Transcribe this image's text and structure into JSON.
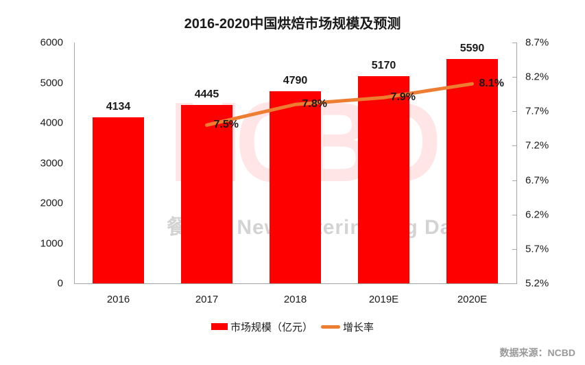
{
  "title": "2016-2020中国烘焙市场规模及预测",
  "chart_data": {
    "type": "bar+line",
    "title": "2016-2020中国烘焙市场规模及预测",
    "categories": [
      "2016",
      "2017",
      "2018",
      "2019E",
      "2020E"
    ],
    "series": [
      {
        "name": "市场规模（亿元）",
        "type": "bar",
        "color": "#FF0000",
        "values": [
          4134,
          4445,
          4790,
          5170,
          5590
        ]
      },
      {
        "name": "增长率",
        "type": "line",
        "color": "#ED7D31",
        "unit": "%",
        "values": [
          null,
          7.5,
          7.8,
          7.9,
          8.1
        ],
        "labels": [
          "7.5%",
          "7.8%",
          "7.9%",
          "8.1%"
        ]
      }
    ],
    "y_left": {
      "min": 0,
      "max": 6000,
      "step": 1000,
      "ticks": [
        "6000",
        "5000",
        "4000",
        "3000",
        "2000",
        "1000",
        "0"
      ]
    },
    "y_right": {
      "min": 5.2,
      "max": 8.7,
      "step": 0.5,
      "ticks": [
        "8.7%",
        "8.2%",
        "7.7%",
        "7.2%",
        "6.7%",
        "6.2%",
        "5.7%",
        "5.2%"
      ]
    },
    "grid": false,
    "legend_position": "bottom"
  },
  "legend": {
    "items": [
      {
        "label": "市场规模（亿元）",
        "swatch": "red-square"
      },
      {
        "label": "增长率",
        "swatch": "orange-line"
      }
    ]
  },
  "watermark": {
    "logo": "NCBD",
    "text": "餐宝典 New Catering Big Data"
  },
  "source": "数据来源：NCBD",
  "colors": {
    "bar": "#FF0000",
    "line": "#ED7D31",
    "watermark_logo": "rgba(255,0,0,0.10)",
    "watermark_text": "rgba(130,130,130,0.35)",
    "axis": "#A6A6A6",
    "text": "#1A1A1A",
    "source_text": "#999999"
  }
}
